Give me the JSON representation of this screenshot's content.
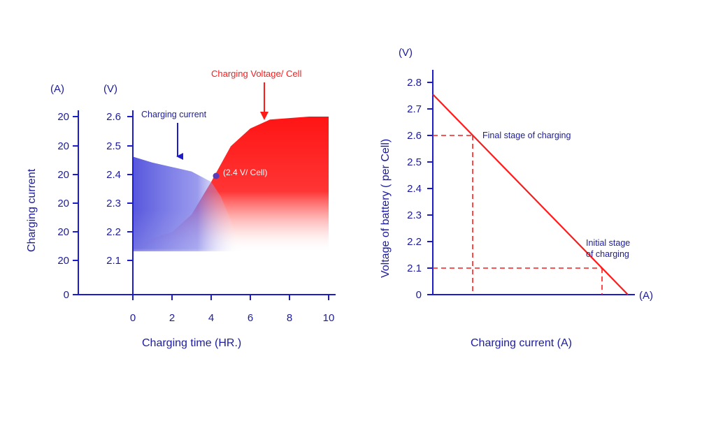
{
  "colors": {
    "axis": "#1c1cc8",
    "text": "#1c1c9c",
    "red": "#ff1a1a",
    "blue": "#3a3ad6"
  },
  "chart_data": [
    {
      "type": "area",
      "title": "",
      "xlabel": "Charging time (HR.)",
      "y_left_label": "Charging current",
      "y_left_unit": "(A)",
      "y_right_unit": "(V)",
      "x_ticks": [
        "0",
        "2",
        "4",
        "6",
        "8",
        "10"
      ],
      "xlim": [
        0,
        10
      ],
      "y_current_ticks": [
        "20",
        "20",
        "20",
        "20",
        "20",
        "20",
        "0"
      ],
      "y_voltage_ticks": [
        "2.6",
        "2.5",
        "2.4",
        "2.3",
        "2.2",
        "2.1"
      ],
      "ylim": [
        2.0,
        2.6
      ],
      "series": [
        {
          "name": "Charging current",
          "color": "#3a3ad6",
          "x": [
            0,
            1,
            2,
            3,
            4,
            4.5,
            5,
            5.5
          ],
          "y": [
            2.465,
            2.445,
            2.43,
            2.415,
            2.38,
            2.33,
            2.25,
            2.15
          ]
        },
        {
          "name": "Charging Voltage/ Cell",
          "color": "#ff1a1a",
          "x": [
            0,
            1,
            2,
            3,
            4,
            4.5,
            5,
            6,
            7,
            8,
            9,
            10
          ],
          "y": [
            2.15,
            2.19,
            2.21,
            2.27,
            2.38,
            2.44,
            2.5,
            2.56,
            2.59,
            2.595,
            2.6,
            2.6
          ]
        }
      ],
      "point": {
        "x": 4.25,
        "y": 2.4,
        "label": "(2.4 V/ Cell)"
      },
      "annotations": [
        {
          "text": "Charging current",
          "x": 2.3,
          "y": 2.43
        },
        {
          "text": "Charging Voltage/ Cell",
          "x": 6.8,
          "y": 2.59
        }
      ]
    },
    {
      "type": "line",
      "title": "",
      "xlabel": "Charging current (A)",
      "ylabel": "Voltage of battery ( per Cell)",
      "y_unit": "(V)",
      "x_unit": "(A)",
      "y_ticks": [
        "2.8",
        "2.7",
        "2.6",
        "2.5",
        "2.4",
        "2.3",
        "2.2",
        "2.1",
        "0"
      ],
      "series": [
        {
          "name": "",
          "color": "#ff1a1a",
          "x": [
            0,
            1
          ],
          "y": [
            2.755,
            2.0
          ]
        }
      ],
      "reference_points": [
        {
          "label": "Final stage of charging",
          "x": 0.2,
          "y": 2.6
        },
        {
          "label": "Initial stage of charging",
          "x": 0.86,
          "y": 2.1
        }
      ]
    }
  ]
}
